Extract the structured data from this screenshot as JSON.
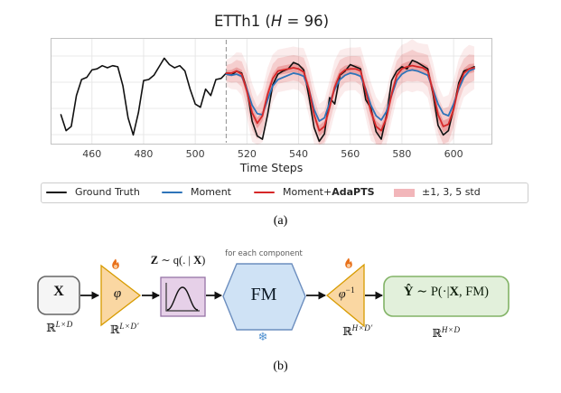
{
  "figure": {
    "caption_a": "(a)",
    "caption_b": "(b)"
  },
  "chart": {
    "title": {
      "pre": "ETTh1 (",
      "h": "H",
      "post": " = 96)"
    },
    "xlabel": "Time Steps",
    "legend": {
      "ground_truth": "Ground Truth",
      "moment": "Moment",
      "adapts_pre": "Moment+",
      "adapts_bold": "AdaPTS",
      "std": "±1, 3, 5 std"
    },
    "colors": {
      "ground_truth": "#111111",
      "moment": "#2E74B9",
      "adapts": "#D62728",
      "band": "#D62728",
      "band_legend_fill": "#F2B6BA"
    }
  },
  "chart_data": {
    "type": "line",
    "title": "ETTh1 (H = 96)",
    "xlabel": "Time Steps",
    "ylabel": "",
    "x_range": [
      444,
      615
    ],
    "xticks": [
      460,
      480,
      500,
      520,
      540,
      560,
      580,
      600
    ],
    "yticks_labeled": false,
    "y_normalized": true,
    "grid": true,
    "legend_position": "bottom",
    "forecast_start": 512,
    "dx": 2,
    "series": [
      {
        "key": "ground-truth",
        "name": "Ground Truth",
        "color": "#111111",
        "width": 1.6,
        "x0": 448,
        "values": [
          0.28,
          0.13,
          0.17,
          0.46,
          0.61,
          0.63,
          0.7,
          0.71,
          0.74,
          0.72,
          0.74,
          0.73,
          0.55,
          0.25,
          0.09,
          0.3,
          0.6,
          0.61,
          0.65,
          0.73,
          0.81,
          0.75,
          0.72,
          0.74,
          0.69,
          0.52,
          0.38,
          0.35,
          0.52,
          0.46,
          0.61,
          0.62,
          0.67,
          0.65,
          0.69,
          0.67,
          0.52,
          0.22,
          0.08,
          0.05,
          0.28,
          0.56,
          0.66,
          0.69,
          0.71,
          0.77,
          0.75,
          0.7,
          0.45,
          0.16,
          0.03,
          0.1,
          0.44,
          0.38,
          0.65,
          0.69,
          0.75,
          0.73,
          0.71,
          0.42,
          0.34,
          0.12,
          0.05,
          0.27,
          0.6,
          0.69,
          0.73,
          0.71,
          0.79,
          0.77,
          0.74,
          0.71,
          0.48,
          0.18,
          0.09,
          0.13,
          0.34,
          0.58,
          0.69,
          0.71,
          0.73
        ]
      },
      {
        "key": "moment",
        "name": "Moment",
        "color": "#2E74B9",
        "width": 1.8,
        "x0": 512,
        "values": [
          0.66,
          0.65,
          0.66,
          0.64,
          0.52,
          0.37,
          0.29,
          0.28,
          0.42,
          0.55,
          0.61,
          0.63,
          0.65,
          0.67,
          0.66,
          0.64,
          0.52,
          0.33,
          0.22,
          0.25,
          0.39,
          0.52,
          0.61,
          0.65,
          0.67,
          0.66,
          0.64,
          0.52,
          0.37,
          0.27,
          0.23,
          0.31,
          0.46,
          0.6,
          0.66,
          0.69,
          0.7,
          0.69,
          0.67,
          0.65,
          0.52,
          0.38,
          0.29,
          0.27,
          0.38,
          0.52,
          0.63,
          0.69,
          0.71
        ]
      },
      {
        "key": "moment-adapts",
        "name": "Moment+AdaPTS",
        "color": "#D62728",
        "width": 1.8,
        "x0": 512,
        "values": [
          0.67,
          0.67,
          0.69,
          0.66,
          0.5,
          0.3,
          0.2,
          0.27,
          0.47,
          0.62,
          0.69,
          0.7,
          0.71,
          0.72,
          0.71,
          0.68,
          0.52,
          0.28,
          0.13,
          0.17,
          0.35,
          0.54,
          0.66,
          0.7,
          0.71,
          0.71,
          0.69,
          0.5,
          0.31,
          0.17,
          0.13,
          0.25,
          0.47,
          0.65,
          0.71,
          0.73,
          0.74,
          0.73,
          0.72,
          0.69,
          0.5,
          0.28,
          0.17,
          0.19,
          0.33,
          0.55,
          0.67,
          0.71,
          0.72
        ]
      }
    ],
    "band": {
      "around": "Moment+AdaPTS",
      "label": "±1, 3, 5 std",
      "stds": [
        1,
        3,
        5
      ],
      "alphas": [
        0.26,
        0.15,
        0.09
      ],
      "color": "#D62728",
      "x0": 512,
      "sigma": [
        0.025,
        0.03,
        0.035,
        0.04,
        0.05,
        0.055,
        0.05,
        0.05,
        0.05,
        0.045,
        0.04,
        0.04,
        0.04,
        0.04,
        0.04,
        0.045,
        0.05,
        0.055,
        0.05,
        0.05,
        0.05,
        0.05,
        0.045,
        0.04,
        0.04,
        0.04,
        0.045,
        0.05,
        0.055,
        0.055,
        0.05,
        0.05,
        0.05,
        0.045,
        0.045,
        0.045,
        0.05,
        0.045,
        0.045,
        0.05,
        0.055,
        0.055,
        0.055,
        0.055,
        0.055,
        0.05,
        0.045,
        0.045,
        0.04
      ]
    }
  },
  "diagram": {
    "input_label": "X",
    "dim_input": "L×D",
    "dim_base": "ℝ",
    "encoder_label": "φ",
    "dim_latent_in": "L×D′",
    "z_bold": "Z",
    "z_mid": " ∼ q(. | ",
    "z_x": "X",
    "z_end": ")",
    "foreach_label": "for each component",
    "fm_label": "FM",
    "snowflake_icon": "❄",
    "decoder_phi": "φ",
    "decoder_sup": "−1",
    "dim_latent_out": "H×D′",
    "out_yhat": "Ŷ",
    "out_mid": " ∼ P(·|",
    "out_x": "X",
    "out_end": ", FM)",
    "dim_output": "H×D",
    "colors": {
      "trainable_flame": "#E8701A",
      "frozen_snowflake": "#4F90D0",
      "encoder_fill": "#FAD7A2",
      "encoder_stroke": "#D79B00",
      "latent_fill": "#E6D0E8",
      "latent_stroke": "#9673A6",
      "fm_fill": "#CFE2F5",
      "fm_stroke": "#6C8EBF",
      "output_fill": "#E2F0DB",
      "output_stroke": "#82B366",
      "input_fill": "#F5F5F5",
      "input_stroke": "#666666"
    }
  }
}
